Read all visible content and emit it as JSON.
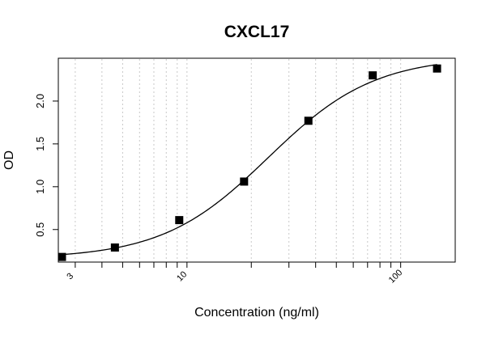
{
  "chart_data": {
    "type": "scatter",
    "title": "CXCL17",
    "xlabel": "Concentration (ng/ml)",
    "ylabel": "OD",
    "x_scale": "log",
    "xlim": [
      2.5,
      180
    ],
    "ylim": [
      0.12,
      2.5
    ],
    "x_ticks": [
      3,
      10,
      100
    ],
    "x_tick_labels": [
      "3",
      "10",
      "100"
    ],
    "y_ticks": [
      0.5,
      1.0,
      1.5,
      2.0
    ],
    "y_tick_labels": [
      "0.5",
      "1.0",
      "1.5",
      "2.0"
    ],
    "grid": "vertical dotted at each log minor division",
    "series": [
      {
        "type": "scatter",
        "marker": "square",
        "x": [
          2.6,
          4.6,
          9.2,
          18.5,
          37,
          74,
          148
        ],
        "y": [
          0.18,
          0.29,
          0.61,
          1.06,
          1.77,
          2.3,
          2.38
        ]
      },
      {
        "type": "line",
        "fit": "four-parameter logistic",
        "params": {
          "bottom": 0.16,
          "top": 2.52,
          "ec50": 24,
          "hill": 1.75
        }
      }
    ],
    "colors": {
      "marker": "#000000",
      "curve": "#000000",
      "grid": "#c8c8c8"
    }
  }
}
